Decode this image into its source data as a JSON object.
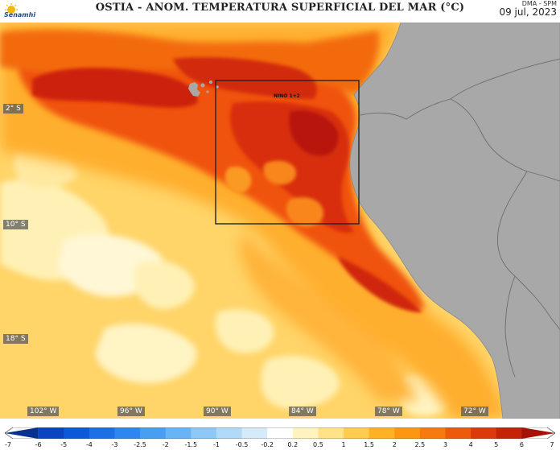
{
  "header": {
    "title": "OSTIA - ANOM. TEMPERATURA SUPERFICIAL DEL MAR (°C)",
    "agency": "DMA - SPM",
    "date": "09 jul, 2023",
    "logo_text": "Senamhi"
  },
  "map": {
    "box_label": "NINO 1+2",
    "latitude_labels": [
      "2° S",
      "10° S",
      "18° S"
    ],
    "longitude_labels": [
      "102° W",
      "96° W",
      "90° W",
      "84° W",
      "78° W",
      "72° W"
    ],
    "colors": {
      "land": "#a8a8a8",
      "border": "#6e6e6e",
      "box": "#222222"
    }
  },
  "colorbar": {
    "tick_labels": [
      "-7",
      "-6",
      "-5",
      "-4",
      "-3",
      "-2.5",
      "-2",
      "-1.5",
      "-1",
      "-0.5",
      "-0.2",
      "0.2",
      "0.5",
      "1",
      "1.5",
      "2",
      "2.5",
      "3",
      "4",
      "5",
      "6",
      "7"
    ],
    "colors": [
      "#08308f",
      "#0a44c0",
      "#0d57db",
      "#1d6fe8",
      "#2f86ef",
      "#4a9ef2",
      "#69b4f4",
      "#8dc8f6",
      "#b1daf8",
      "#d6ebfa",
      "#ffffff",
      "#fff4c0",
      "#ffe28a",
      "#ffcc4e",
      "#ffb224",
      "#fd9610",
      "#f87a0c",
      "#ee5a0b",
      "#dc3a0a",
      "#c42308",
      "#a61207"
    ]
  }
}
